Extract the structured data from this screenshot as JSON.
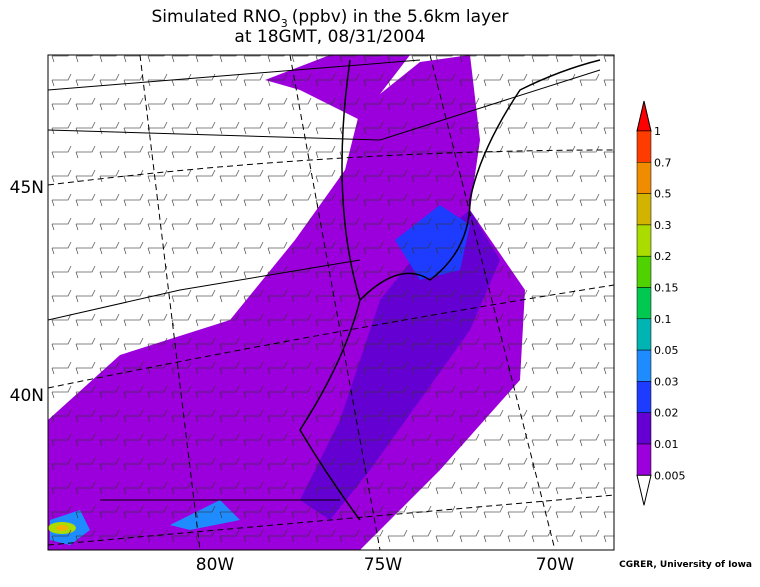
{
  "title": {
    "prefix": "Simulated RNO",
    "subscript": "3",
    "suffix": "(ppbv) in the 5.6km layer",
    "line2": "at 18GMT, 08/31/2004"
  },
  "latitude_labels": [
    "45N",
    "40N"
  ],
  "longitude_labels": [
    "80W",
    "75W",
    "70W"
  ],
  "colorbar": {
    "labels": [
      "1",
      "0.7",
      "0.5",
      "0.3",
      "0.2",
      "0.15",
      "0.1",
      "0.05",
      "0.03",
      "0.02",
      "0.01",
      "0.005"
    ],
    "colors": [
      "#ff0000",
      "#ff3c00",
      "#f08c00",
      "#d2b400",
      "#aadc00",
      "#50d200",
      "#00c850",
      "#00b4b4",
      "#1e8cff",
      "#1e3cff",
      "#6400d2",
      "#9b00dc"
    ]
  },
  "credit": "CGRER, University of Iowa"
}
